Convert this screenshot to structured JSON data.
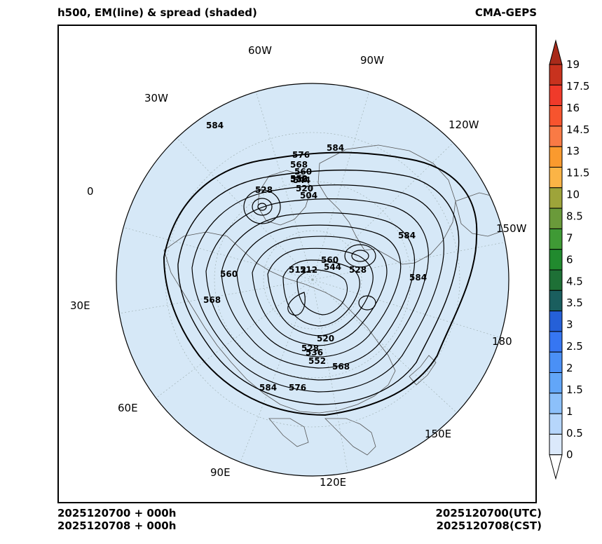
{
  "header": {
    "title_left": "h500, EM(line) & spread (shaded)",
    "title_right": "CMA-GEPS"
  },
  "footer": {
    "init_utc_left": "2025120700 + 000h",
    "init_cst_left": "2025120708 + 000h",
    "valid_utc_right": "2025120700(UTC)",
    "valid_cst_right": "2025120708(CST)"
  },
  "map": {
    "projection": "north-polar-stereographic",
    "ocean_color": "#d6e8f7",
    "land_border_color": "#555555",
    "longitude_labels": [
      "60W",
      "90W",
      "30W",
      "120W",
      "0",
      "150W",
      "30E",
      "180",
      "60E",
      "150E",
      "90E",
      "120E"
    ],
    "contour_labels": [
      "584",
      "576",
      "584",
      "568",
      "560",
      "552",
      "544",
      "536",
      "528",
      "520",
      "504",
      "512",
      "528",
      "544",
      "560",
      "520",
      "528",
      "536",
      "552",
      "568",
      "584",
      "576",
      "584",
      "584",
      "560",
      "568",
      "512"
    ]
  },
  "colorbar": {
    "levels": [
      "19",
      "17.5",
      "16",
      "14.5",
      "13",
      "11.5",
      "10",
      "8.5",
      "7",
      "6",
      "4.5",
      "3.5",
      "3",
      "2.5",
      "2",
      "1.5",
      "1",
      "0.5",
      "0"
    ],
    "colors": [
      "#c8321e",
      "#f03a2a",
      "#f7542e",
      "#f97a45",
      "#fa9a2e",
      "#fbb446",
      "#9ea43a",
      "#6a9a3a",
      "#3f9a35",
      "#218a2e",
      "#1e7036",
      "#1a5e5e",
      "#2560d8",
      "#3676f2",
      "#4a90f6",
      "#62a6f8",
      "#8cc0fa",
      "#b6d6fb",
      "#dbe9fb"
    ],
    "top_arrow_color": "#a82a1a",
    "bottom_arrow_color": "#ffffff"
  }
}
